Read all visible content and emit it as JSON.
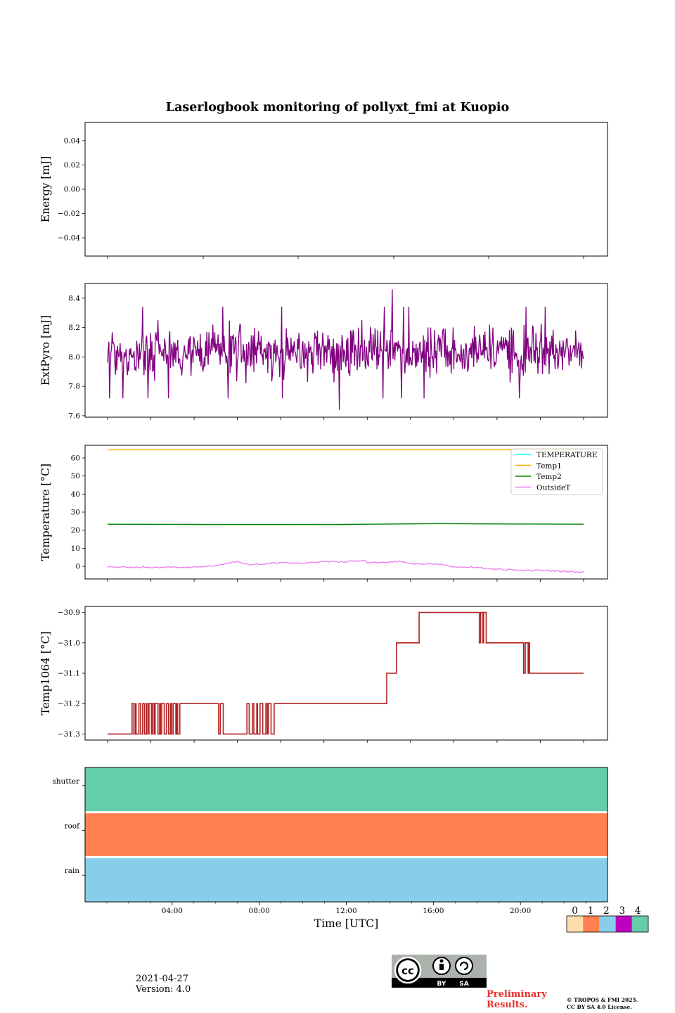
{
  "title": "Laserlogbook monitoring of pollyxt_fmi at Kuopio",
  "chart_data": [
    {
      "type": "line",
      "name": "energy",
      "ylabel": "Energy [mJ]",
      "ylim": [
        -0.055,
        0.055
      ],
      "yticks": [
        0.04,
        0.02,
        0.0,
        -0.02,
        -0.04
      ],
      "yticklabels": [
        "0.04",
        "0.02",
        "0.00",
        "−0.02",
        "−0.04"
      ],
      "series": []
    },
    {
      "type": "line",
      "name": "extpyro",
      "ylabel": "ExtPyro [mJ]",
      "ylim": [
        7.59,
        8.5
      ],
      "yticks": [
        7.6,
        7.8,
        8.0,
        8.2,
        8.4
      ],
      "yticklabels": [
        "7.6",
        "7.8",
        "8.0",
        "8.2",
        "8.4"
      ],
      "series": [
        {
          "name": "ExtPyro",
          "color": "#800080",
          "mean": 8.03,
          "spread": 0.12,
          "min": 7.64,
          "max": 8.46,
          "x_hours": [
            1.0,
            23.0
          ]
        }
      ]
    },
    {
      "type": "line",
      "name": "temperature",
      "ylabel": "Temperature [°C]",
      "ylim": [
        -7,
        67
      ],
      "yticks": [
        0,
        10,
        20,
        30,
        40,
        50,
        60
      ],
      "yticklabels": [
        "0",
        "10",
        "20",
        "30",
        "40",
        "50",
        "60"
      ],
      "legend_position": "top-right",
      "series": [
        {
          "name": "TEMPERATURE",
          "color": "#00ffff",
          "x": [],
          "y": []
        },
        {
          "name": "Temp1",
          "color": "#ffa500",
          "x": [
            1,
            23
          ],
          "y": [
            64.5,
            64.5
          ]
        },
        {
          "name": "Temp2",
          "color": "#008000",
          "x": [
            1,
            5,
            8,
            12,
            16,
            20,
            23
          ],
          "y": [
            23.3,
            23.2,
            23.1,
            23.2,
            23.6,
            23.4,
            23.3
          ]
        },
        {
          "name": "OutsideT",
          "color": "#ee82ee",
          "x": [
            1,
            3,
            5,
            6,
            6.5,
            7,
            7.5,
            8,
            9,
            10,
            11,
            12,
            12.8,
            13,
            14,
            14.5,
            15,
            16,
            16.5,
            17,
            18,
            19,
            20,
            21,
            22,
            23
          ],
          "y": [
            -0.3,
            -0.6,
            -0.5,
            0.3,
            1.5,
            2.8,
            0.8,
            1.2,
            2.0,
            1.8,
            2.5,
            2.4,
            3.5,
            2.2,
            2.1,
            3.0,
            1.6,
            1.3,
            1.0,
            -0.3,
            -0.6,
            -1.5,
            -2.0,
            -2.3,
            -2.8,
            -3.2
          ]
        }
      ]
    },
    {
      "type": "line",
      "name": "temp1064",
      "ylabel": "Temp1064 [°C]",
      "ylim": [
        -31.32,
        -30.88
      ],
      "yticks": [
        -30.9,
        -31.0,
        -31.1,
        -31.2,
        -31.3
      ],
      "yticklabels": [
        "−30.9",
        "−31.0",
        "−31.1",
        "−31.2",
        "−31.3"
      ],
      "series": [
        {
          "name": "Temp1064",
          "color": "#b22222",
          "segments": [
            {
              "x0": 1.0,
              "x1": 2.1,
              "y": -31.3
            },
            {
              "x0": 2.1,
              "x1": 3.2,
              "y": -31.3,
              "alt": -31.2
            },
            {
              "x0": 3.2,
              "x1": 4.4,
              "y": -31.2,
              "alt": -31.3
            },
            {
              "x0": 4.4,
              "x1": 6.1,
              "y": -31.2
            },
            {
              "x0": 6.1,
              "x1": 6.4,
              "y": -31.2,
              "alt": -31.3
            },
            {
              "x0": 6.4,
              "x1": 7.4,
              "y": -31.3
            },
            {
              "x0": 7.4,
              "x1": 8.7,
              "y": -31.3,
              "alt": -31.2
            },
            {
              "x0": 8.7,
              "x1": 13.9,
              "y": -31.2
            },
            {
              "x0": 13.9,
              "x1": 14.2,
              "y": -31.1
            },
            {
              "x0": 14.2,
              "x1": 14.4,
              "y": -31.1,
              "alt": -31.0
            },
            {
              "x0": 14.4,
              "x1": 15.4,
              "y": -31.0
            },
            {
              "x0": 15.4,
              "x1": 18.1,
              "y": -30.9
            },
            {
              "x0": 18.1,
              "x1": 18.5,
              "y": -30.9,
              "alt": -31.0
            },
            {
              "x0": 18.5,
              "x1": 20.1,
              "y": -31.0
            },
            {
              "x0": 20.1,
              "x1": 20.5,
              "y": -31.0,
              "alt": -31.1
            },
            {
              "x0": 20.5,
              "x1": 23.0,
              "y": -31.1
            }
          ]
        }
      ]
    },
    {
      "type": "heatmap",
      "name": "status",
      "xlabel": "Time [UTC]",
      "xlim_hours": [
        0,
        24
      ],
      "xticks_hours": [
        4,
        8,
        12,
        16,
        20
      ],
      "xticklabels": [
        "04:00",
        "08:00",
        "12:00",
        "16:00",
        "20:00"
      ],
      "rows": [
        {
          "label": "shutter",
          "status": 4
        },
        {
          "label": "roof",
          "status": 1
        },
        {
          "label": "rain",
          "status": 2
        }
      ],
      "colorbar": {
        "labels": [
          "0",
          "1",
          "2",
          "3",
          "4"
        ],
        "colors": [
          "#ffdead",
          "#ff7f50",
          "#87ceeb",
          "#c000c0",
          "#66cdaa"
        ]
      }
    }
  ],
  "footer": {
    "date": "2021-04-27",
    "version": "Version: 4.0",
    "preliminary_line1": "Preliminary",
    "preliminary_line2": "Results.",
    "copyright_line1": "© TROPOS & FMI 2025.",
    "copyright_line2": "CC BY SA 4.0 License.",
    "license_by": "BY",
    "license_sa": "SA"
  }
}
